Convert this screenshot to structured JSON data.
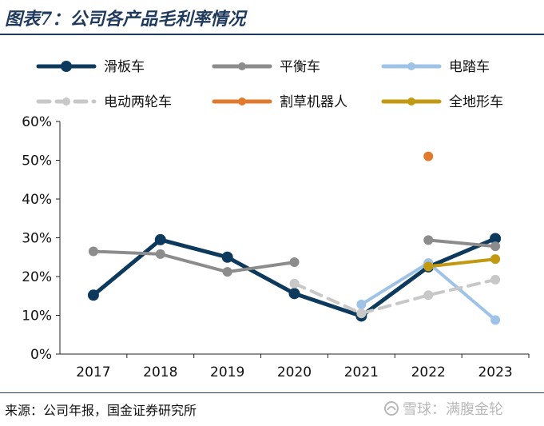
{
  "header": {
    "title": "图表7：公司各产品毛利率情况"
  },
  "footer": {
    "source": "来源：公司年报，国金证券研究所",
    "watermark": "雪球：满腹金轮"
  },
  "chart_data": {
    "type": "line",
    "title": "图表7：公司各产品毛利率情况",
    "x": [
      "2017",
      "2018",
      "2019",
      "2020",
      "2021",
      "2022",
      "2023"
    ],
    "ylim": [
      0,
      60
    ],
    "yticks": [
      "0%",
      "10%",
      "20%",
      "30%",
      "40%",
      "50%",
      "60%"
    ],
    "grid": false,
    "legend_position": "top",
    "series": [
      {
        "name": "滑板车",
        "color": "#0d3a5c",
        "dash": false,
        "values": [
          15.2,
          29.5,
          25.0,
          15.6,
          9.8,
          22.5,
          29.8
        ]
      },
      {
        "name": "平衡车",
        "color": "#8c8c8c",
        "dash": false,
        "values": [
          26.5,
          25.8,
          21.2,
          23.7,
          null,
          29.4,
          27.8
        ]
      },
      {
        "name": "电踏车",
        "color": "#9fc3e6",
        "dash": false,
        "values": [
          null,
          null,
          null,
          null,
          12.8,
          23.5,
          8.8
        ]
      },
      {
        "name": "电动两轮车",
        "color": "#c8c8c8",
        "dash": true,
        "values": [
          null,
          null,
          null,
          18.2,
          10.5,
          15.2,
          19.2
        ]
      },
      {
        "name": "割草机器人",
        "color": "#e07a2e",
        "dash": false,
        "values": [
          null,
          null,
          null,
          null,
          null,
          51.0,
          null
        ]
      },
      {
        "name": "全地形车",
        "color": "#c19a12",
        "dash": false,
        "values": [
          null,
          null,
          null,
          null,
          null,
          22.6,
          24.5
        ]
      }
    ]
  }
}
